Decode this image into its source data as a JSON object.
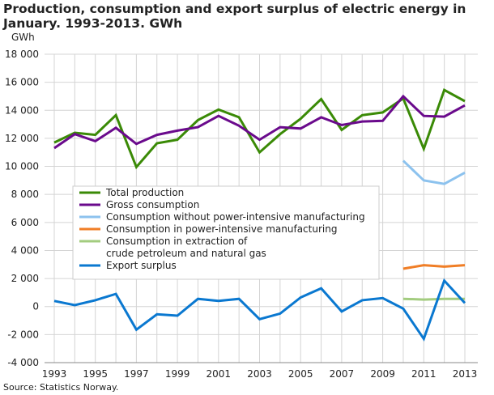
{
  "chart_data": {
    "type": "line",
    "title": "Production, consumption and export surplus of electric energy in January. 1993-2013. GWh",
    "ylabel": "GWh",
    "ylim": [
      -4000,
      18000
    ],
    "yticks": [
      -4000,
      -2000,
      0,
      2000,
      4000,
      6000,
      8000,
      10000,
      12000,
      14000,
      16000,
      18000
    ],
    "ytick_labels": [
      "-4 000",
      "-2 000",
      "0",
      "2 000",
      "4 000",
      "6 000",
      "8 000",
      "10 000",
      "12 000",
      "14 000",
      "16 000",
      "18 000"
    ],
    "x": [
      1993,
      1994,
      1995,
      1996,
      1997,
      1998,
      1999,
      2000,
      2001,
      2002,
      2003,
      2004,
      2005,
      2006,
      2007,
      2008,
      2009,
      2010,
      2011,
      2012,
      2013
    ],
    "xtick_labels": [
      "1993",
      "1995",
      "1997",
      "1999",
      "2001",
      "2003",
      "2005",
      "2007",
      "2009",
      "2011",
      "2013"
    ],
    "grid": true,
    "legend": "center-left",
    "series": [
      {
        "name": "Total production",
        "color": "#3a8a06",
        "values": [
          11700,
          12400,
          12250,
          13650,
          9950,
          11650,
          11900,
          13300,
          14050,
          13500,
          11000,
          12300,
          13400,
          14800,
          12600,
          13650,
          13850,
          14850,
          11250,
          15450,
          14650
        ]
      },
      {
        "name": "Gross consumption",
        "color": "#6a0a8c",
        "values": [
          11300,
          12300,
          11800,
          12750,
          11600,
          12250,
          12550,
          12800,
          13600,
          12900,
          11900,
          12800,
          12700,
          13500,
          12950,
          13200,
          13250,
          15000,
          13600,
          13550,
          14350
        ]
      },
      {
        "name": "Consumption without power-intensive manufacturing",
        "color": "#8cc2ee",
        "values": [
          null,
          null,
          null,
          null,
          null,
          null,
          null,
          null,
          null,
          null,
          null,
          null,
          null,
          null,
          null,
          null,
          null,
          10400,
          9000,
          8750,
          9550
        ]
      },
      {
        "name": "Consumption in power-intensive manufacturing",
        "color": "#f07e26",
        "values": [
          null,
          null,
          null,
          null,
          null,
          null,
          null,
          null,
          null,
          null,
          null,
          null,
          null,
          null,
          null,
          null,
          null,
          2700,
          2950,
          2850,
          2950
        ]
      },
      {
        "name": "Consumption in extraction of\ncrude petroleum and  natural gas",
        "color": "#a3cc7f",
        "values": [
          null,
          null,
          null,
          null,
          null,
          null,
          null,
          null,
          null,
          null,
          null,
          null,
          null,
          null,
          null,
          null,
          null,
          550,
          500,
          550,
          550
        ]
      },
      {
        "name": "Export surplus",
        "color": "#0a78d0",
        "values": [
          400,
          100,
          450,
          900,
          -1650,
          -550,
          -650,
          550,
          400,
          550,
          -900,
          -500,
          650,
          1300,
          -350,
          450,
          600,
          -150,
          -2300,
          1850,
          250
        ]
      }
    ]
  },
  "source": "Source: Statistics Norway."
}
